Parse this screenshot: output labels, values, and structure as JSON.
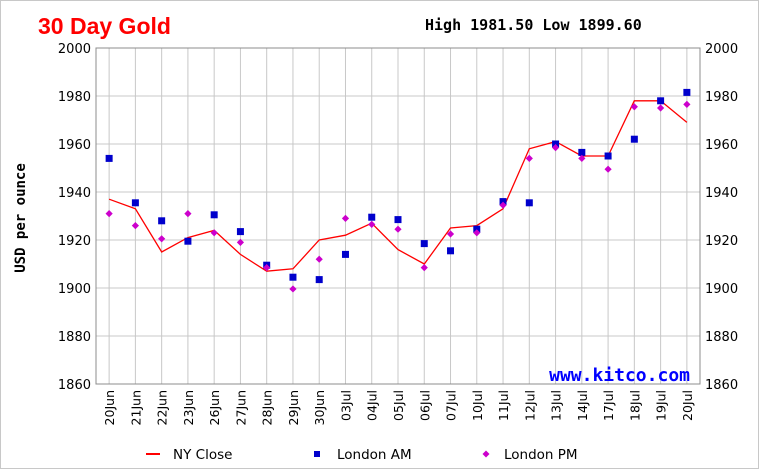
{
  "header": {
    "title": "30 Day Gold",
    "high_low": "High 1981.50 Low 1899.60"
  },
  "watermark": "www.kitco.com",
  "colors": {
    "title": "#ff0000",
    "ny_close": "#ff0000",
    "london_am": "#0000cc",
    "london_pm": "#cc00cc",
    "grid": "#c8c8c8",
    "watermark": "#0000ff"
  },
  "chart_data": {
    "type": "line",
    "title": "30 Day Gold",
    "ylabel": "USD per ounce",
    "xlabel": "",
    "ylim": [
      1860,
      2000
    ],
    "yticks": [
      1860,
      1880,
      1900,
      1920,
      1940,
      1960,
      1980,
      2000
    ],
    "ytick_labels": [
      "1860",
      "1880",
      "1900",
      "1920",
      "1940",
      "1960",
      "1980",
      "2000"
    ],
    "grid": true,
    "legend_position": "bottom",
    "categories": [
      "20Jun",
      "21Jun",
      "22Jun",
      "23Jun",
      "26Jun",
      "27Jun",
      "28Jun",
      "29Jun",
      "30Jun",
      "03Jul",
      "04Jul",
      "05Jul",
      "06Jul",
      "07Jul",
      "10Jul",
      "11Jul",
      "12Jul",
      "13Jul",
      "14Jul",
      "17Jul",
      "18Jul",
      "19Jul",
      "20Jul"
    ],
    "series": [
      {
        "name": "NY Close",
        "kind": "line",
        "color": "#ff0000",
        "values": [
          1937,
          1933,
          1915,
          1921,
          1924,
          1914,
          1907,
          1908,
          1920,
          1922,
          1927,
          1916,
          1910,
          1925,
          1926,
          1933,
          1958,
          1961,
          1955,
          1955,
          1978,
          1978,
          1969
        ]
      },
      {
        "name": "London AM",
        "kind": "square",
        "color": "#0000cc",
        "values": [
          1954,
          1935.5,
          1928,
          1919.5,
          1930.5,
          1923.5,
          1909.5,
          1904.5,
          1903.5,
          1914,
          1929.5,
          1928.5,
          1918.5,
          1915.5,
          1924.5,
          1936,
          1935.5,
          1960,
          1956.5,
          1955,
          1962,
          1978,
          1981.5
        ]
      },
      {
        "name": "London PM",
        "kind": "diamond",
        "color": "#cc00cc",
        "values": [
          1931,
          1926,
          1920.5,
          1931,
          1923,
          1919,
          1908.5,
          1899.6,
          1912,
          1929,
          1926.5,
          1924.5,
          1908.5,
          1922.5,
          1923,
          1934.5,
          1954,
          1958.5,
          1954,
          1949.5,
          1975.5,
          1975,
          1976.5
        ]
      }
    ]
  }
}
